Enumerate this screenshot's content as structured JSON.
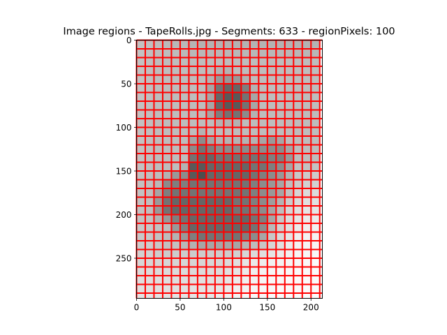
{
  "chart_data": {
    "type": "heatmap",
    "title": "Image regions - TapeRolls.jpg - Segments: 633 - regionPixels: 100",
    "xlabel": "",
    "ylabel": "",
    "x_ticks": [
      0,
      50,
      100,
      150,
      200
    ],
    "y_ticks": [
      0,
      50,
      100,
      150,
      200,
      250
    ],
    "xlim": [
      0,
      213
    ],
    "ylim": [
      296,
      0
    ],
    "grid": false,
    "cell_size": 10,
    "region_border_color": "#ff0000",
    "colormap": "grayscale",
    "values": [
      [
        76,
        75,
        74,
        73,
        72,
        72,
        71,
        70,
        70,
        70,
        70,
        70,
        70,
        70,
        70,
        70,
        70,
        70,
        70,
        70,
        70
      ],
      [
        76,
        75,
        74,
        74,
        74,
        73,
        72,
        72,
        72,
        72,
        72,
        72,
        72,
        72,
        72,
        72,
        72,
        72,
        72,
        72,
        72
      ],
      [
        76,
        75,
        74,
        74,
        74,
        74,
        74,
        74,
        74,
        74,
        74,
        74,
        74,
        74,
        74,
        74,
        74,
        74,
        74,
        74,
        74
      ],
      [
        76,
        75,
        74,
        74,
        74,
        74,
        74,
        74,
        74,
        70,
        70,
        74,
        74,
        74,
        74,
        74,
        74,
        74,
        74,
        74,
        74
      ],
      [
        76,
        75,
        74,
        74,
        74,
        74,
        74,
        74,
        70,
        60,
        60,
        60,
        70,
        74,
        74,
        74,
        74,
        74,
        74,
        74,
        74
      ],
      [
        76,
        75,
        74,
        74,
        74,
        74,
        74,
        74,
        65,
        45,
        40,
        40,
        50,
        70,
        74,
        74,
        74,
        74,
        74,
        74,
        74
      ],
      [
        76,
        75,
        74,
        74,
        74,
        74,
        74,
        74,
        65,
        40,
        35,
        35,
        45,
        65,
        74,
        74,
        74,
        74,
        74,
        74,
        74
      ],
      [
        76,
        75,
        74,
        74,
        74,
        74,
        74,
        74,
        65,
        40,
        35,
        35,
        45,
        65,
        74,
        74,
        74,
        74,
        74,
        74,
        74
      ],
      [
        76,
        75,
        74,
        74,
        74,
        74,
        74,
        74,
        65,
        50,
        45,
        45,
        55,
        70,
        74,
        74,
        74,
        74,
        74,
        74,
        74
      ],
      [
        76,
        75,
        74,
        74,
        74,
        74,
        74,
        74,
        74,
        70,
        70,
        70,
        74,
        74,
        74,
        74,
        74,
        74,
        74,
        74,
        74
      ],
      [
        76,
        75,
        74,
        74,
        74,
        74,
        74,
        70,
        74,
        74,
        74,
        74,
        74,
        74,
        74,
        74,
        74,
        74,
        74,
        74,
        74
      ],
      [
        76,
        75,
        74,
        74,
        74,
        74,
        65,
        55,
        65,
        70,
        70,
        70,
        70,
        70,
        65,
        60,
        65,
        74,
        74,
        74,
        74
      ],
      [
        76,
        75,
        74,
        74,
        74,
        74,
        55,
        45,
        50,
        55,
        55,
        55,
        55,
        55,
        55,
        55,
        55,
        65,
        74,
        74,
        74
      ],
      [
        76,
        75,
        74,
        74,
        74,
        74,
        45,
        40,
        40,
        45,
        45,
        45,
        45,
        45,
        45,
        50,
        50,
        60,
        74,
        74,
        74
      ],
      [
        76,
        75,
        74,
        74,
        74,
        70,
        35,
        35,
        40,
        40,
        40,
        40,
        40,
        45,
        45,
        50,
        55,
        65,
        76,
        76,
        76
      ],
      [
        76,
        75,
        74,
        70,
        60,
        55,
        35,
        30,
        40,
        40,
        40,
        40,
        40,
        45,
        50,
        55,
        60,
        70,
        78,
        80,
        80
      ],
      [
        76,
        75,
        72,
        55,
        50,
        50,
        45,
        45,
        45,
        45,
        45,
        45,
        45,
        50,
        55,
        60,
        65,
        75,
        80,
        82,
        82
      ],
      [
        76,
        75,
        65,
        50,
        45,
        45,
        45,
        45,
        45,
        45,
        45,
        45,
        45,
        50,
        55,
        60,
        65,
        76,
        84,
        86,
        86
      ],
      [
        76,
        75,
        60,
        45,
        40,
        40,
        40,
        40,
        40,
        40,
        40,
        45,
        45,
        50,
        55,
        62,
        70,
        80,
        86,
        88,
        88
      ],
      [
        76,
        75,
        60,
        45,
        40,
        40,
        40,
        40,
        40,
        40,
        40,
        45,
        45,
        50,
        55,
        65,
        74,
        84,
        88,
        90,
        90
      ],
      [
        76,
        76,
        70,
        60,
        50,
        45,
        40,
        40,
        40,
        40,
        40,
        40,
        40,
        45,
        50,
        65,
        78,
        86,
        90,
        92,
        92
      ],
      [
        78,
        78,
        76,
        74,
        60,
        50,
        40,
        40,
        40,
        40,
        40,
        40,
        40,
        45,
        55,
        72,
        82,
        88,
        92,
        94,
        94
      ],
      [
        78,
        78,
        76,
        74,
        70,
        60,
        50,
        45,
        45,
        45,
        45,
        45,
        50,
        55,
        65,
        78,
        85,
        90,
        94,
        95,
        95
      ],
      [
        80,
        80,
        78,
        76,
        76,
        72,
        70,
        65,
        65,
        65,
        65,
        65,
        70,
        74,
        78,
        84,
        88,
        92,
        95,
        96,
        96
      ],
      [
        82,
        82,
        80,
        80,
        80,
        80,
        80,
        80,
        80,
        80,
        80,
        82,
        84,
        86,
        88,
        90,
        92,
        94,
        96,
        97,
        97
      ],
      [
        84,
        84,
        84,
        84,
        84,
        84,
        84,
        84,
        84,
        84,
        86,
        88,
        90,
        92,
        93,
        94,
        95,
        96,
        97,
        98,
        98
      ],
      [
        86,
        86,
        86,
        86,
        86,
        86,
        86,
        86,
        86,
        86,
        88,
        90,
        92,
        94,
        95,
        96,
        97,
        97,
        98,
        98,
        98
      ],
      [
        87,
        87,
        87,
        87,
        87,
        87,
        88,
        88,
        88,
        88,
        90,
        92,
        94,
        95,
        96,
        97,
        97,
        98,
        98,
        98,
        98
      ],
      [
        88,
        88,
        88,
        88,
        88,
        88,
        89,
        89,
        89,
        90,
        92,
        94,
        95,
        96,
        97,
        97,
        98,
        98,
        98,
        98,
        98
      ],
      [
        89,
        89,
        89,
        89,
        89,
        89,
        90,
        90,
        90,
        92,
        94,
        95,
        96,
        97,
        97,
        98,
        98,
        98,
        98,
        98,
        98
      ]
    ]
  }
}
